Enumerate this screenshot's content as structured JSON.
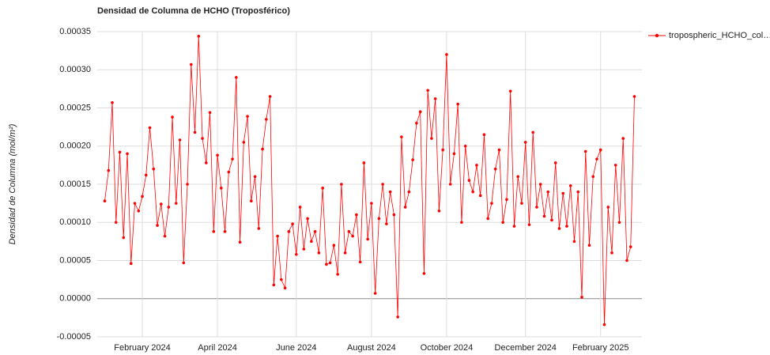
{
  "chart_data": {
    "type": "line",
    "title": "Densidad de Columna de HCHO (Troposférico)",
    "y_label": "Densidad de Columna (mol/m²)",
    "categories": [
      null,
      null,
      null,
      null,
      null,
      null,
      null,
      null,
      null,
      null,
      "February 2024",
      null,
      null,
      null,
      null,
      null,
      null,
      null,
      null,
      null,
      null,
      null,
      null,
      null,
      null,
      null,
      null,
      null,
      null,
      null,
      "April 2024",
      null,
      null,
      null,
      null,
      null,
      null,
      null,
      null,
      null,
      null,
      null,
      null,
      null,
      null,
      null,
      null,
      null,
      null,
      null,
      null,
      "June 2024",
      null,
      null,
      null,
      null,
      null,
      null,
      null,
      null,
      null,
      null,
      null,
      null,
      null,
      null,
      null,
      null,
      null,
      null,
      null,
      "August 2024",
      null,
      null,
      null,
      null,
      null,
      null,
      null,
      null,
      null,
      null,
      null,
      null,
      null,
      null,
      null,
      null,
      null,
      null,
      null,
      "October 2024",
      null,
      null,
      null,
      null,
      null,
      null,
      null,
      null,
      null,
      null,
      null,
      null,
      null,
      null,
      null,
      null,
      null,
      null,
      null,
      null,
      "December 2024",
      null,
      null,
      null,
      null,
      null,
      null,
      null,
      null,
      null,
      null,
      null,
      null,
      null,
      null,
      null,
      null,
      null,
      null,
      null,
      "February 2025",
      null,
      null,
      null,
      null,
      null,
      null,
      null,
      null,
      null
    ],
    "series": [
      {
        "name": "tropospheric_HCHO_col…",
        "color": "#ff0000",
        "values": [
          0.000128,
          0.000168,
          0.000257,
          0.0001,
          0.000192,
          8e-05,
          0.00019,
          4.6e-05,
          0.000125,
          0.000115,
          0.000134,
          0.000162,
          0.000224,
          0.00017,
          9.6e-05,
          0.000124,
          8.2e-05,
          0.00012,
          0.000238,
          0.000125,
          0.000208,
          4.7e-05,
          0.00015,
          0.000307,
          0.000218,
          0.000344,
          0.00021,
          0.000178,
          0.000244,
          8.8e-05,
          0.000188,
          0.000145,
          8.8e-05,
          0.000166,
          0.000183,
          0.00029,
          7.4e-05,
          0.000205,
          0.000239,
          0.000128,
          0.00016,
          9.2e-05,
          0.000196,
          0.000235,
          0.000265,
          1.8e-05,
          8.2e-05,
          2.5e-05,
          1.4e-05,
          8.8e-05,
          9.8e-05,
          5.8e-05,
          0.00012,
          6.5e-05,
          0.000105,
          7.5e-05,
          8.8e-05,
          6e-05,
          0.000145,
          4.5e-05,
          4.7e-05,
          7e-05,
          3.2e-05,
          0.00015,
          6e-05,
          8.8e-05,
          8.2e-05,
          0.00011,
          4.8e-05,
          0.000178,
          7.8e-05,
          0.000125,
          7e-06,
          0.000105,
          0.00015,
          9.8e-05,
          0.00014,
          0.00011,
          -2.4e-05,
          0.000212,
          0.00012,
          0.00014,
          0.000182,
          0.00023,
          0.000245,
          3.3e-05,
          0.000273,
          0.00021,
          0.000262,
          0.000115,
          0.000195,
          0.00032,
          0.00015,
          0.00019,
          0.000255,
          0.0001,
          0.0002,
          0.000155,
          0.00014,
          0.000175,
          0.000135,
          0.000215,
          0.000105,
          0.000125,
          0.00017,
          0.000195,
          0.0001,
          0.00013,
          0.000272,
          9.5e-05,
          0.00016,
          0.000125,
          0.000205,
          9.7e-05,
          0.000218,
          0.00012,
          0.00015,
          0.000108,
          0.00014,
          0.000103,
          0.000178,
          9.2e-05,
          0.000138,
          9.5e-05,
          0.000148,
          7.5e-05,
          0.00014,
          2e-06,
          0.000193,
          7e-05,
          0.00016,
          0.000183,
          0.000195,
          -3.4e-05,
          0.00012,
          6e-05,
          0.000175,
          0.0001,
          0.00021,
          5e-05,
          6.8e-05,
          0.000265
        ]
      }
    ],
    "ylim": [
      -5e-05,
      0.00035
    ],
    "yticks": [
      -5e-05,
      {
        "value": 0,
        "label": "0.00000"
      },
      5e-05,
      {
        "value": 0.0001,
        "label": "0.00010"
      },
      0.00015,
      {
        "value": 0.0002,
        "label": "0.00020"
      },
      0.00025,
      {
        "value": 0.0003,
        "label": "0.00030"
      },
      0.00035
    ],
    "grid": true,
    "legend": "right"
  }
}
